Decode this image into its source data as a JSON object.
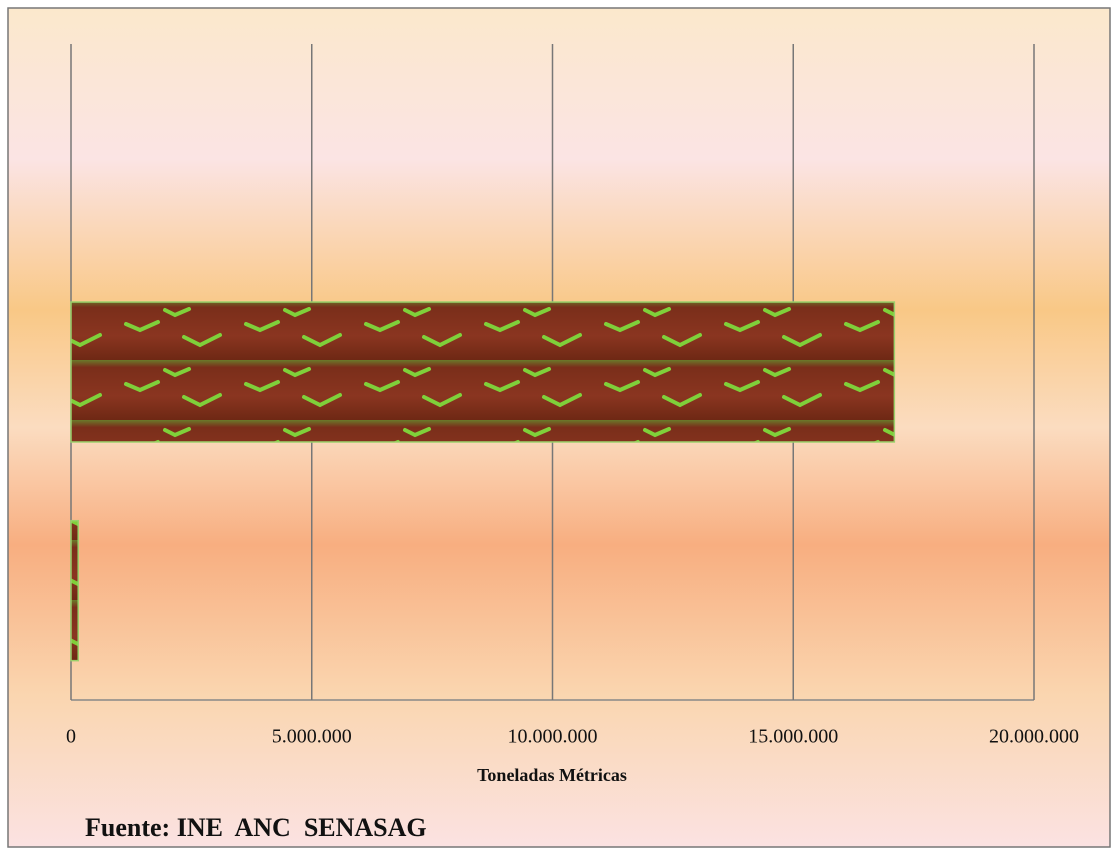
{
  "chart_data": {
    "type": "barh",
    "categories": [
      null,
      null
    ],
    "values": [
      17100000,
      150000
    ],
    "xlim": [
      0,
      20000000
    ],
    "xticks": [
      0,
      {
        "value": 5000000,
        "label": "5.000.000"
      },
      {
        "value": 10000000,
        "label": "10.000.000"
      },
      {
        "value": 15000000,
        "label": "15.000.000"
      },
      {
        "value": 20000000,
        "label": "20.000.000"
      }
    ],
    "grid": true,
    "xlabel": "Toneladas Métricas",
    "source": "Fuente: INE  ANC  SENASAG"
  }
}
